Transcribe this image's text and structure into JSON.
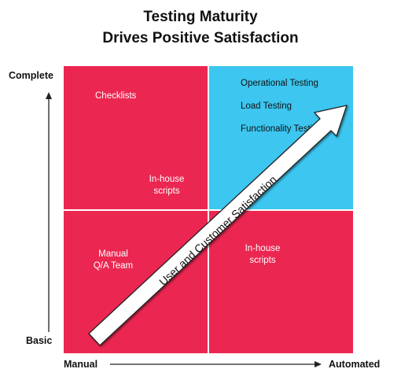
{
  "title": {
    "line1": "Testing Maturity",
    "line2": "Drives Positive Satisfaction"
  },
  "axes": {
    "y_top": "Complete",
    "y_bottom": "Basic",
    "x_left": "Manual",
    "x_right": "Automated"
  },
  "quadrants": {
    "top_left": {
      "color": "#EB2751",
      "item1": "Checklists",
      "item2_line1": "In-house",
      "item2_line2": "scripts"
    },
    "top_right": {
      "color": "#3CC6F0",
      "item1": "Operational Testing",
      "item2": "Load Testing",
      "item3": "Functionality Testing"
    },
    "bottom_left": {
      "color": "#EB2751",
      "item1_line1": "Manual",
      "item1_line2": "Q/A Team"
    },
    "bottom_right": {
      "color": "#EB2751",
      "item1_line1": "In-house",
      "item1_line2": "scripts"
    }
  },
  "arrow_label": "User and Customer Satisfaction"
}
